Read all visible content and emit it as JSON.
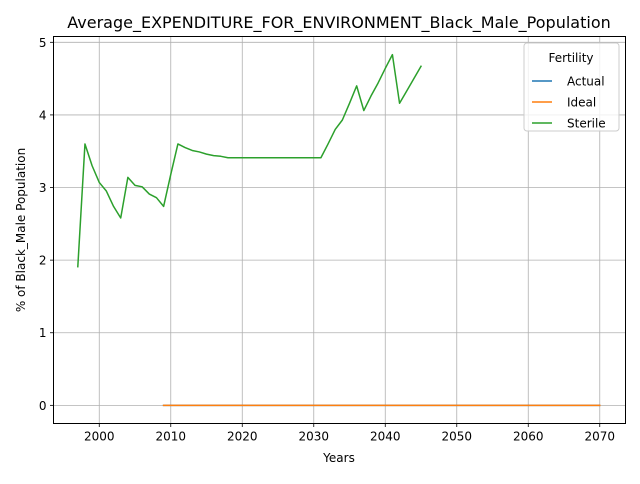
{
  "chart_data": {
    "type": "line",
    "title": "Average_EXPENDITURE_FOR_ENVIRONMENT_Black_Male_Population",
    "xlabel": "Years",
    "ylabel": "% of Black_Male Population",
    "xlim": [
      1993.6,
      2073.6
    ],
    "ylim": [
      -0.25,
      5.08
    ],
    "xticks": [
      2000,
      2010,
      2020,
      2030,
      2040,
      2050,
      2060,
      2070
    ],
    "yticks": [
      0,
      1,
      2,
      3,
      4,
      5
    ],
    "grid": true,
    "legend": {
      "title": "Fertility",
      "placement": "top-right"
    },
    "series": [
      {
        "name": "Actual",
        "color": "#1f77b4",
        "x": [
          2009,
          2070
        ],
        "y": [
          0,
          0
        ]
      },
      {
        "name": "Ideal",
        "color": "#ff7f0e",
        "x": [
          2009,
          2070
        ],
        "y": [
          0,
          0
        ]
      },
      {
        "name": "Sterile",
        "color": "#2ca02c",
        "x": [
          1997,
          1998,
          1999,
          2000,
          2001,
          2002,
          2003,
          2004,
          2005,
          2006,
          2007,
          2008,
          2009,
          2010,
          2011,
          2012,
          2013,
          2014,
          2015,
          2016,
          2017,
          2018,
          2019,
          2020,
          2021,
          2022,
          2023,
          2024,
          2025,
          2026,
          2027,
          2028,
          2029,
          2030,
          2031,
          2032,
          2033,
          2034,
          2035,
          2036,
          2037,
          2038,
          2039,
          2040,
          2041,
          2042,
          2043,
          2044,
          2045
        ],
        "y": [
          1.91,
          3.6,
          3.3,
          3.07,
          2.95,
          2.74,
          2.58,
          3.14,
          3.03,
          3.01,
          2.91,
          2.86,
          2.74,
          3.18,
          3.6,
          3.55,
          3.51,
          3.49,
          3.46,
          3.44,
          3.43,
          3.41,
          3.41,
          3.41,
          3.41,
          3.41,
          3.41,
          3.41,
          3.41,
          3.41,
          3.41,
          3.41,
          3.41,
          3.41,
          3.41,
          3.6,
          3.8,
          3.93,
          4.16,
          4.4,
          4.06,
          4.26,
          4.44,
          4.64,
          4.83,
          4.16,
          4.33,
          4.5,
          4.67
        ]
      }
    ]
  }
}
